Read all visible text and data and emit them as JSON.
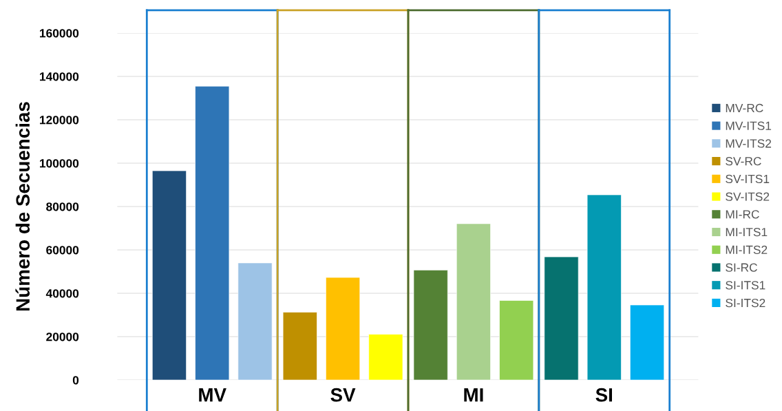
{
  "chart_data": {
    "type": "bar",
    "ylabel": "Número de Secuencias",
    "categories": [
      "MV",
      "SV",
      "MI",
      "SI"
    ],
    "series": [
      {
        "name": "MV-RC",
        "color": "#1f4e79",
        "values": [
          96500,
          null,
          null,
          null
        ]
      },
      {
        "name": "MV-ITS1",
        "color": "#2e75b6",
        "values": [
          135500,
          null,
          null,
          null
        ]
      },
      {
        "name": "MV-ITS2",
        "color": "#9dc3e6",
        "values": [
          54000,
          null,
          null,
          null
        ]
      },
      {
        "name": "SV-RC",
        "color": "#bf9000",
        "values": [
          null,
          31300,
          null,
          null
        ]
      },
      {
        "name": "SV-ITS1",
        "color": "#ffc000",
        "values": [
          null,
          47300,
          null,
          null
        ]
      },
      {
        "name": "SV-ITS2",
        "color": "#ffff00",
        "values": [
          null,
          21100,
          null,
          null
        ]
      },
      {
        "name": "MI-RC",
        "color": "#548235",
        "values": [
          null,
          null,
          50700,
          null
        ]
      },
      {
        "name": "MI-ITS1",
        "color": "#a9d18e",
        "values": [
          null,
          null,
          72100,
          null
        ]
      },
      {
        "name": "MI-ITS2",
        "color": "#92d050",
        "values": [
          null,
          null,
          36700,
          null
        ]
      },
      {
        "name": "SI-RC",
        "color": "#06726f",
        "values": [
          null,
          null,
          null,
          56800
        ]
      },
      {
        "name": "SI-ITS1",
        "color": "#039ab3",
        "values": [
          null,
          null,
          null,
          85400
        ]
      },
      {
        "name": "SI-ITS2",
        "color": "#00b0f0",
        "values": [
          null,
          null,
          null,
          34600
        ]
      }
    ],
    "ylim": [
      0,
      160000
    ],
    "yticks": [
      0,
      20000,
      40000,
      60000,
      80000,
      100000,
      120000,
      140000,
      160000
    ],
    "grid": "y",
    "legend": "right"
  }
}
